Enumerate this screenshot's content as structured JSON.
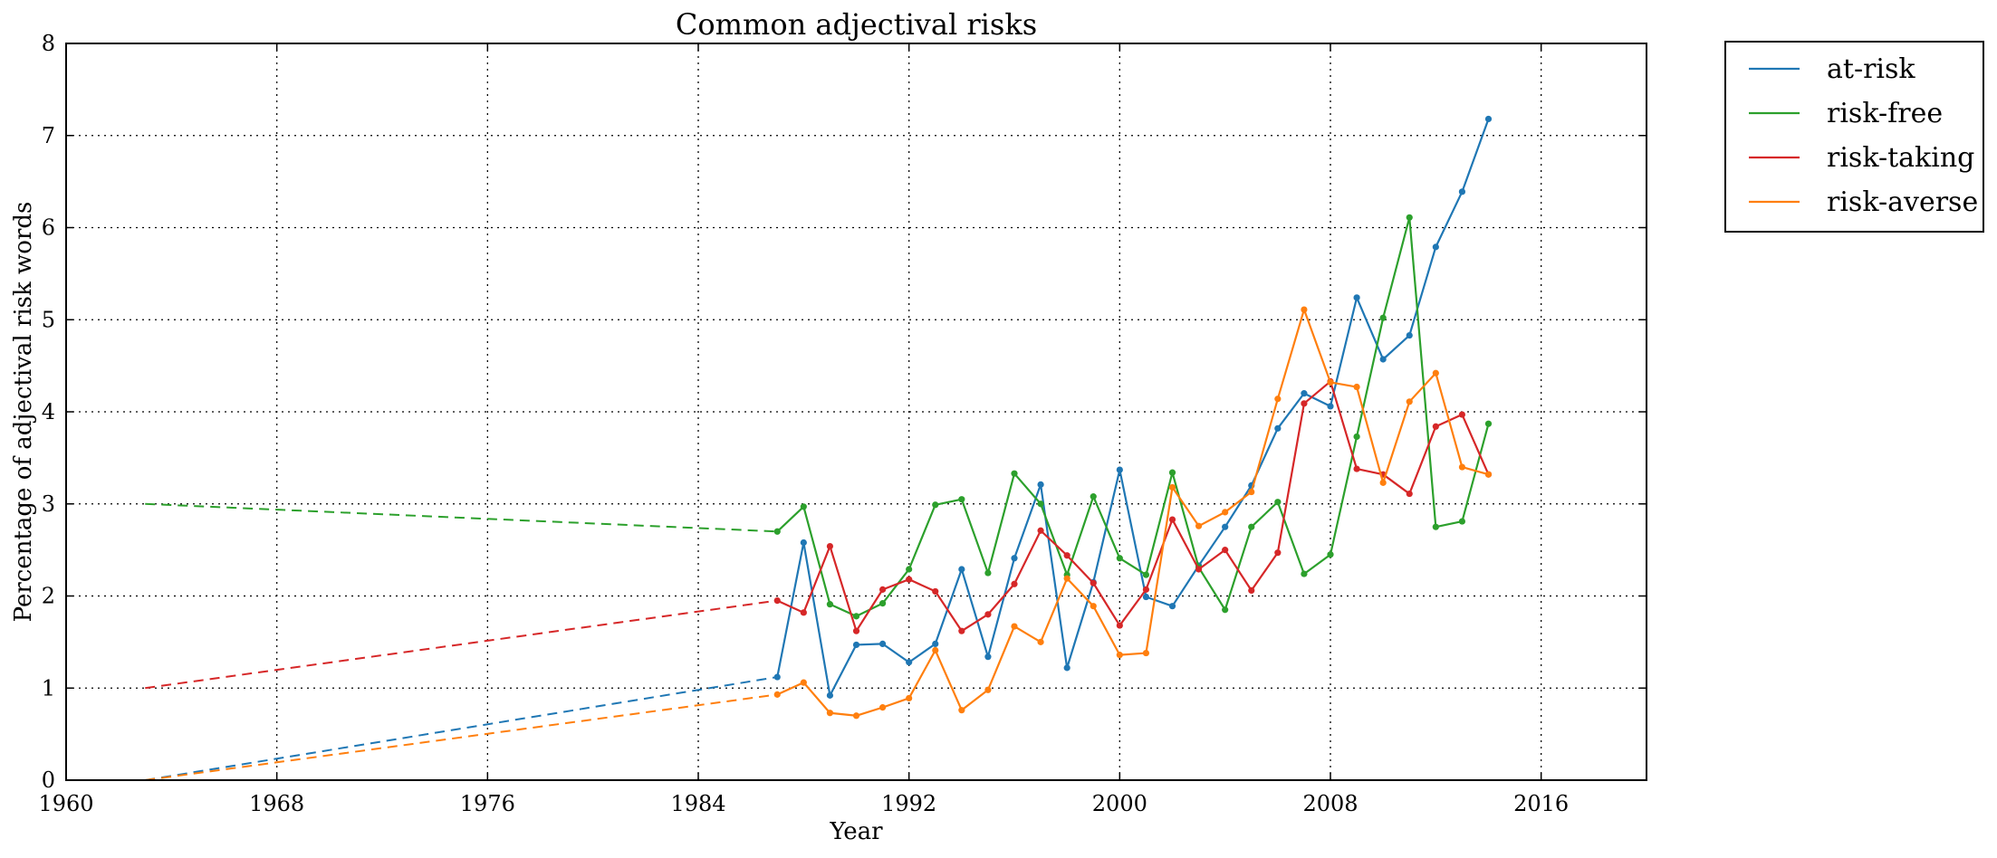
{
  "chart_data": {
    "type": "line",
    "title": "Common adjectival risks",
    "xlabel": "Year",
    "ylabel": "Percentage of adjectival risk words",
    "xlim": [
      1960,
      2020
    ],
    "ylim": [
      0,
      8
    ],
    "xticks": [
      1960,
      1968,
      1976,
      1984,
      1992,
      2000,
      2008,
      2016
    ],
    "yticks": [
      0,
      1,
      2,
      3,
      4,
      5,
      6,
      7,
      8
    ],
    "grid": true,
    "legend_position": "outside-top-right",
    "extrapolation_start_year": 1963,
    "series": [
      {
        "name": "at-risk",
        "color": "#1f77b4",
        "extrapolated_start": 0.0,
        "x": [
          1987,
          1988,
          1989,
          1990,
          1991,
          1992,
          1993,
          1994,
          1995,
          1996,
          1997,
          1998,
          1999,
          2000,
          2001,
          2002,
          2003,
          2004,
          2005,
          2006,
          2007,
          2008,
          2009,
          2010,
          2011,
          2012,
          2013,
          2014
        ],
        "y": [
          1.12,
          2.58,
          0.92,
          1.47,
          1.48,
          1.28,
          1.48,
          2.29,
          1.34,
          2.41,
          3.21,
          1.22,
          2.15,
          3.37,
          1.99,
          1.89,
          2.33,
          2.75,
          3.2,
          3.82,
          4.2,
          4.06,
          5.24,
          4.57,
          4.83,
          5.79,
          6.39,
          7.18
        ]
      },
      {
        "name": "risk-free",
        "color": "#2ca02c",
        "extrapolated_start": 3.0,
        "x": [
          1987,
          1988,
          1989,
          1990,
          1991,
          1992,
          1993,
          1994,
          1995,
          1996,
          1997,
          1998,
          1999,
          2000,
          2001,
          2002,
          2003,
          2004,
          2005,
          2006,
          2007,
          2008,
          2009,
          2010,
          2011,
          2012,
          2013,
          2014
        ],
        "y": [
          2.7,
          2.97,
          1.91,
          1.78,
          1.92,
          2.29,
          2.99,
          3.05,
          2.25,
          3.33,
          3.0,
          2.23,
          3.08,
          2.41,
          2.23,
          3.34,
          2.31,
          1.85,
          2.75,
          3.02,
          2.24,
          2.45,
          3.73,
          5.02,
          6.11,
          2.75,
          2.81,
          3.87
        ]
      },
      {
        "name": "risk-taking",
        "color": "#d62728",
        "extrapolated_start": 1.0,
        "x": [
          1987,
          1988,
          1989,
          1990,
          1991,
          1992,
          1993,
          1994,
          1995,
          1996,
          1997,
          1998,
          1999,
          2000,
          2001,
          2002,
          2003,
          2004,
          2005,
          2006,
          2007,
          2008,
          2009,
          2010,
          2011,
          2012,
          2013,
          2014
        ],
        "y": [
          1.95,
          1.82,
          2.54,
          1.62,
          2.07,
          2.18,
          2.05,
          1.62,
          1.8,
          2.13,
          2.71,
          2.44,
          2.14,
          1.68,
          2.07,
          2.83,
          2.29,
          2.5,
          2.06,
          2.47,
          4.09,
          4.33,
          3.38,
          3.32,
          3.11,
          3.84,
          3.97,
          3.32
        ]
      },
      {
        "name": "risk-averse",
        "color": "#ff7f0e",
        "extrapolated_start": 0.0,
        "x": [
          1987,
          1988,
          1989,
          1990,
          1991,
          1992,
          1993,
          1994,
          1995,
          1996,
          1997,
          1998,
          1999,
          2000,
          2001,
          2002,
          2003,
          2004,
          2005,
          2006,
          2007,
          2008,
          2009,
          2010,
          2011,
          2012,
          2013,
          2014
        ],
        "y": [
          0.93,
          1.06,
          0.73,
          0.7,
          0.79,
          0.89,
          1.41,
          0.76,
          0.98,
          1.67,
          1.5,
          2.19,
          1.89,
          1.36,
          1.38,
          3.18,
          2.76,
          2.91,
          3.13,
          4.14,
          5.11,
          4.32,
          4.27,
          3.23,
          4.11,
          4.42,
          3.4,
          3.32
        ]
      }
    ]
  }
}
